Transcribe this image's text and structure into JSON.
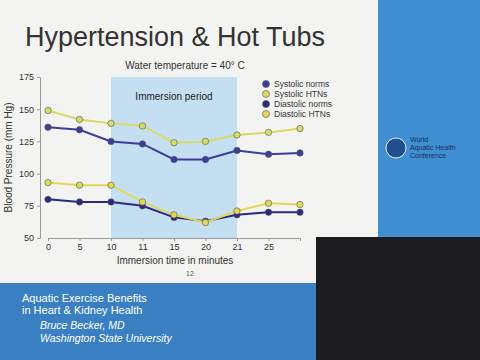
{
  "chart_data": {
    "type": "line",
    "title": "Hypertension & Hot Tubs",
    "subtitle": "Water temperature = 40° C",
    "x_label": "Immersion time in minutes",
    "y_label": "Blood Pressure (mm Hg)",
    "categories": [
      0,
      5,
      10,
      11,
      15,
      20,
      21,
      25,
      null
    ],
    "series": [
      {
        "name": "Systolic norms",
        "color": "#3c3c9c",
        "marker": "circle",
        "line_style": "solid",
        "values": [
          136,
          134,
          125,
          123,
          111,
          111,
          118,
          115,
          116
        ]
      },
      {
        "name": "Systolic HTNs",
        "color": "#d6da66",
        "marker": "circle",
        "line_style": "solid",
        "values": [
          149,
          142,
          139,
          137,
          124,
          125,
          130,
          132,
          135
        ]
      },
      {
        "name": "Diastolic norms",
        "color": "#2a2a80",
        "marker": "circle",
        "line_style": "solid",
        "values": [
          80,
          78,
          78,
          75,
          66,
          63,
          68,
          70,
          70
        ]
      },
      {
        "name": "Diastolic HTNs",
        "color": "#e2d858",
        "marker": "circle",
        "line_style": "solid",
        "values": [
          93,
          91,
          91,
          78,
          68,
          62,
          71,
          77,
          76
        ]
      }
    ],
    "ylim": [
      50,
      175
    ],
    "yticks": [
      50,
      75,
      100,
      125,
      150,
      175
    ],
    "grid": false,
    "legend": "top-right",
    "annotations": [
      {
        "text": "Immersion period",
        "x": [
          10,
          21
        ]
      }
    ]
  },
  "slide": {
    "number": "12",
    "logo": [
      "World",
      "Aquatic Health",
      "Conference"
    ],
    "caption": [
      "Aquatic Exercise Benefits",
      "in Heart & Kidney Health"
    ],
    "speaker": "Bruce Becker, MD",
    "affiliation": "Washington State University"
  }
}
